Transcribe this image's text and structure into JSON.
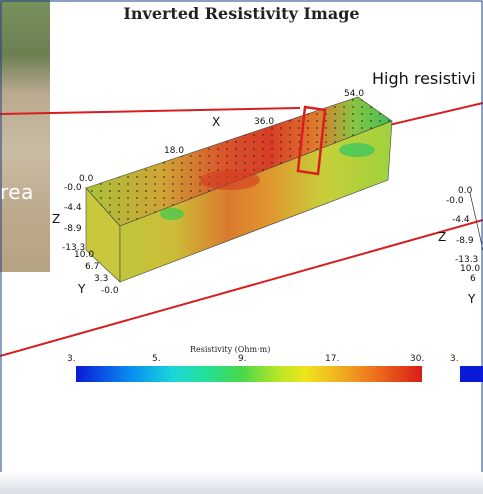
{
  "title": "Inverted Resistivity Image",
  "callout_text": "High resistivi",
  "photo_text": "rea",
  "axes": {
    "x_label": "X",
    "y_label": "Y",
    "z_label": "Z",
    "x_ticks": [
      "18.0",
      "36.0",
      "54.0"
    ],
    "z_ticks": [
      "0.0",
      "-0.0",
      "-4.4",
      "-8.9",
      "-13.3"
    ],
    "y_ticks": [
      "10.0",
      "6.7",
      "3.3",
      "-0.0"
    ],
    "right_z_ticks": [
      "0.0",
      "-0.0",
      "-4.4",
      "-8.9",
      "-13.3"
    ],
    "right_y_ticks": [
      "10.0",
      "6"
    ]
  },
  "colorbar": {
    "title": "Resistivity (Ohm·m)",
    "ticks": [
      "3.",
      "5.",
      "9.",
      "17.",
      "30."
    ],
    "right_tick": "3."
  },
  "colors": {
    "outline_red": "#d81e1e",
    "frame_blue": "#1f3c88"
  }
}
